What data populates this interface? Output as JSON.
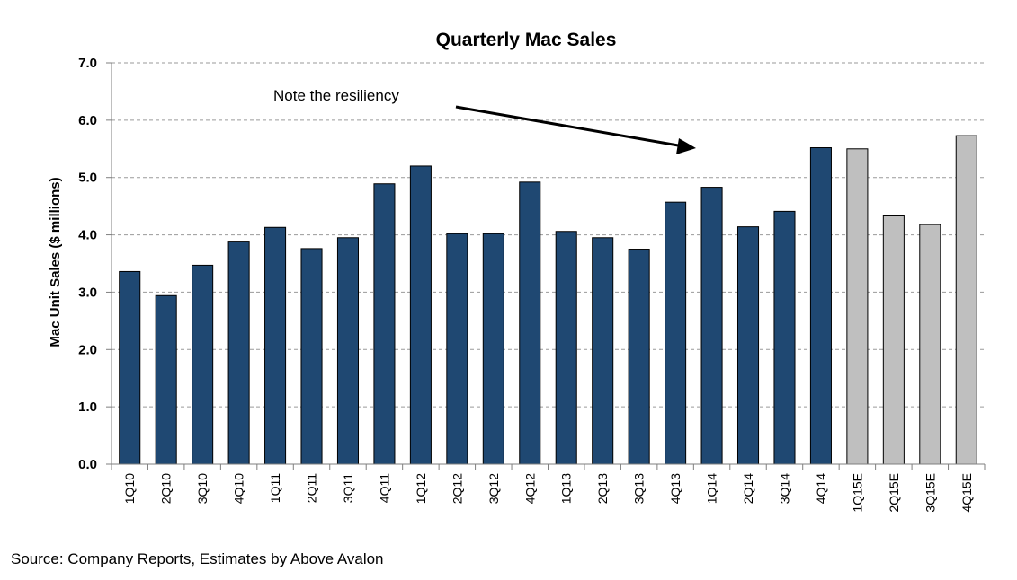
{
  "chart_data": {
    "type": "bar",
    "title": "Quarterly Mac Sales",
    "ylabel": "Mac Unit Sales ($ millions)",
    "xlabel": "",
    "ylim": [
      0,
      7
    ],
    "yticks": [
      "0.0",
      "1.0",
      "2.0",
      "3.0",
      "4.0",
      "5.0",
      "6.0",
      "7.0"
    ],
    "grid": true,
    "categories": [
      "1Q10",
      "2Q10",
      "3Q10",
      "4Q10",
      "1Q11",
      "2Q11",
      "3Q11",
      "4Q11",
      "1Q12",
      "2Q12",
      "3Q12",
      "4Q12",
      "1Q13",
      "2Q13",
      "3Q13",
      "4Q13",
      "1Q14",
      "2Q14",
      "3Q14",
      "4Q14",
      "1Q15E",
      "2Q15E",
      "3Q15E",
      "4Q15E"
    ],
    "values": [
      3.36,
      2.94,
      3.47,
      3.89,
      4.13,
      3.76,
      3.95,
      4.89,
      5.2,
      4.02,
      4.02,
      4.92,
      4.06,
      3.95,
      3.75,
      4.57,
      4.83,
      4.14,
      4.41,
      5.52,
      5.5,
      4.33,
      4.18,
      5.73
    ],
    "colors": {
      "actual": "#1f4872",
      "estimate": "#bfbfbf",
      "grid": "#9a9a9a"
    },
    "estimate_flags": [
      false,
      false,
      false,
      false,
      false,
      false,
      false,
      false,
      false,
      false,
      false,
      false,
      false,
      false,
      false,
      false,
      false,
      false,
      false,
      false,
      true,
      true,
      true,
      true
    ],
    "annotation": "Note the resiliency"
  },
  "source": "Source: Company Reports, Estimates by Above Avalon"
}
